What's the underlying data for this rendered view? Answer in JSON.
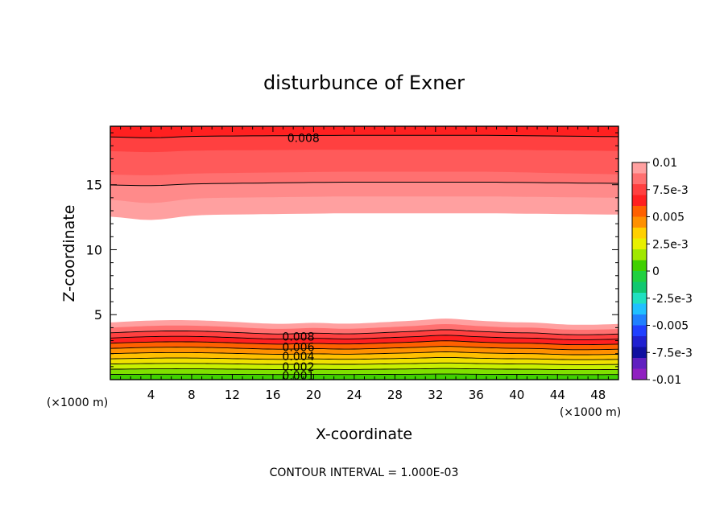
{
  "chart_data": {
    "type": "contour",
    "title": "disturbunce of Exner",
    "xlabel": "X-coordinate",
    "ylabel": "Z-coordinate",
    "x_unit_left": "(×1000 m)",
    "x_unit_right": "(×1000 m)",
    "xlim": [
      0,
      50
    ],
    "ylim": [
      0,
      19.5
    ],
    "xticks": [
      4,
      8,
      12,
      16,
      20,
      24,
      28,
      32,
      36,
      40,
      44,
      48
    ],
    "xtick_labels": [
      "4",
      "8",
      "12",
      "16",
      "20",
      "24",
      "28",
      "32",
      "36",
      "40",
      "44",
      "48"
    ],
    "yticks": [
      5,
      10,
      15
    ],
    "ytick_labels": [
      "5",
      "10",
      "15"
    ],
    "contour_interval_text": "CONTOUR INTERVAL = 1.000E-03",
    "contour_labels": [
      {
        "text": "0.008",
        "x": 19.0,
        "z": 18.6
      },
      {
        "text": "0.008",
        "x": 18.5,
        "z": 3.3
      },
      {
        "text": "0.006",
        "x": 18.5,
        "z": 2.5
      },
      {
        "text": "0.004",
        "x": 18.5,
        "z": 1.8
      },
      {
        "text": "0.002",
        "x": 18.5,
        "z": 1.0
      },
      {
        "text": "0.001",
        "x": 18.5,
        "z": 0.3
      }
    ],
    "colorbar": {
      "min": -0.01,
      "max": 0.01,
      "labels": [
        "0.01",
        "7.5e-3",
        "0.005",
        "2.5e-3",
        "0",
        "-2.5e-3",
        "-0.005",
        "-7.5e-3",
        "-0.01"
      ],
      "colors_top_to_bottom": [
        "#ffa0a0",
        "#ff7070",
        "#ff4040",
        "#ff2020",
        "#ff6000",
        "#ff9000",
        "#ffd000",
        "#e8f000",
        "#a0e800",
        "#40d000",
        "#20d040",
        "#10c870",
        "#20e0c0",
        "#20c0ff",
        "#2080ff",
        "#2040ff",
        "#2020d0",
        "#1010a0",
        "#6020c0",
        "#9020c0"
      ]
    },
    "field_bands": {
      "top": [
        {
          "color": "#ffa0a0",
          "z_left": 12.6,
          "z_mid": 12.8,
          "z_right": 12.7
        },
        {
          "color": "#ff8a8a",
          "z_left": 13.9,
          "z_mid": 14.1,
          "z_right": 14.0
        },
        {
          "color": "#ff7070",
          "z_left": 15.0,
          "z_mid": 15.2,
          "z_right": 15.1
        },
        {
          "color": "#ff5a5a",
          "z_left": 15.8,
          "z_mid": 16.0,
          "z_right": 15.8
        },
        {
          "color": "#ff4040",
          "z_left": 17.6,
          "z_mid": 17.7,
          "z_right": 17.6
        },
        {
          "color": "#ff2020",
          "z_left": 18.7,
          "z_mid": 18.8,
          "z_right": 18.7
        }
      ],
      "bottom": [
        {
          "color": "#ffa0a0",
          "z": 4.4
        },
        {
          "color": "#ff7070",
          "z": 4.0
        },
        {
          "color": "#ff4040",
          "z": 3.6
        },
        {
          "color": "#ff2020",
          "z": 3.2
        },
        {
          "color": "#ff6000",
          "z": 2.8
        },
        {
          "color": "#ff9000",
          "z": 2.4
        },
        {
          "color": "#ffc000",
          "z": 2.0
        },
        {
          "color": "#f0e000",
          "z": 1.6
        },
        {
          "color": "#c8f000",
          "z": 1.2
        },
        {
          "color": "#80e000",
          "z": 0.8
        },
        {
          "color": "#40d000",
          "z": 0.4
        }
      ]
    }
  }
}
